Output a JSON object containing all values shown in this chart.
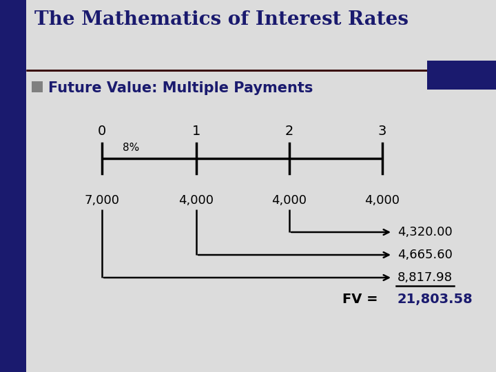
{
  "title": "The Mathematics of Interest Rates",
  "subtitle": "Future Value: Multiple Payments",
  "title_color": "#1a1a6e",
  "subtitle_color": "#1a1a6e",
  "bg_color": "#dcdcdc",
  "left_bar_color": "#1a1a6e",
  "top_bar_color": "#1a1a6e",
  "bullet_color": "#808080",
  "timeline_labels": [
    "0",
    "1",
    "2",
    "3"
  ],
  "rate_label": "8%",
  "payment_labels": [
    "7,000",
    "4,000",
    "4,000",
    "4,000"
  ],
  "fv_labels": [
    "4,320.00",
    "4,665.60",
    "8,817.98"
  ],
  "fv_total": "21,803.58",
  "fv_text": "FV = "
}
